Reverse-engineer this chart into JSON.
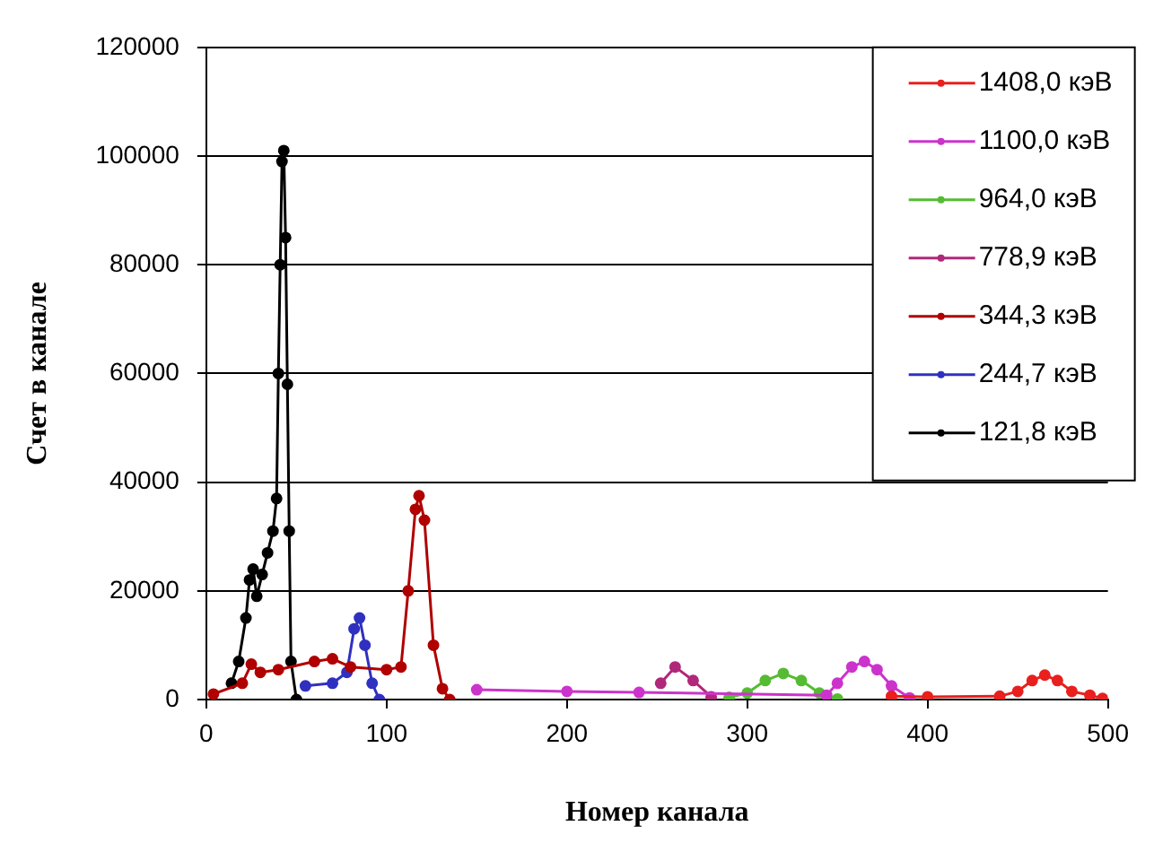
{
  "chart_data": {
    "type": "line",
    "xlabel": "Номер канала",
    "ylabel": "Счет в канале",
    "xlim": [
      0,
      500
    ],
    "xticks": [
      0,
      100,
      200,
      300,
      400,
      500
    ],
    "ylim": [
      0,
      120000
    ],
    "yticks": [
      0,
      20000,
      40000,
      60000,
      80000,
      100000,
      120000
    ],
    "grid": "y",
    "legend": "top right",
    "marker": "circle",
    "line_style": "solid",
    "series": [
      {
        "name": "1408,0 кэВ",
        "color": "#e8201e",
        "x": [
          380,
          400,
          440,
          450,
          458,
          465,
          472,
          480,
          490,
          497
        ],
        "values": [
          600,
          500,
          600,
          1500,
          3500,
          4500,
          3500,
          1500,
          800,
          200
        ]
      },
      {
        "name": "1100,0 кэВ",
        "color": "#cc33cc",
        "x": [
          150,
          200,
          240,
          344,
          350,
          358,
          365,
          372,
          380,
          390
        ],
        "values": [
          1800,
          1500,
          1300,
          800,
          3000,
          6000,
          7000,
          5500,
          2500,
          300
        ]
      },
      {
        "name": "964,0 кэВ",
        "color": "#55bb33",
        "x": [
          290,
          300,
          310,
          320,
          330,
          340,
          350
        ],
        "values": [
          400,
          1200,
          3500,
          4800,
          3500,
          1200,
          100
        ]
      },
      {
        "name": "778,9 кэВ",
        "color": "#b0287a",
        "x": [
          252,
          260,
          270,
          280
        ],
        "values": [
          3000,
          6000,
          3500,
          500
        ]
      },
      {
        "name": "344,3 кэВ",
        "color": "#b00000",
        "x": [
          4,
          20,
          25,
          30,
          40,
          60,
          70,
          80,
          100,
          108,
          112,
          116,
          118,
          121,
          126,
          131,
          135
        ],
        "values": [
          1000,
          3000,
          6500,
          5000,
          5500,
          7000,
          7500,
          6000,
          5500,
          6000,
          20000,
          35000,
          37500,
          33000,
          10000,
          2000,
          0
        ]
      },
      {
        "name": "244,7 кэВ",
        "color": "#3030c0",
        "x": [
          55,
          70,
          78,
          82,
          85,
          88,
          92,
          96
        ],
        "values": [
          2500,
          3000,
          5000,
          13000,
          15000,
          10000,
          3000,
          0
        ]
      },
      {
        "name": "121,8 кэВ",
        "color": "#000000",
        "x": [
          14,
          18,
          22,
          24,
          26,
          28,
          31,
          34,
          37,
          39,
          40,
          41,
          42,
          43,
          44,
          45,
          46,
          47,
          50
        ],
        "values": [
          3000,
          7000,
          15000,
          22000,
          24000,
          19000,
          23000,
          27000,
          31000,
          37000,
          60000,
          80000,
          99000,
          101000,
          85000,
          58000,
          31000,
          7000,
          0
        ]
      }
    ]
  }
}
